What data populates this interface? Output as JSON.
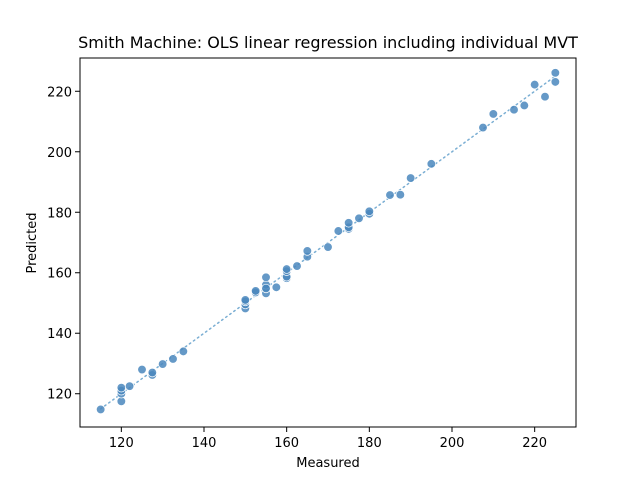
{
  "chart_data": {
    "type": "scatter",
    "title": "Smith Machine: OLS linear regression including individual MVT",
    "xlabel": "Measured",
    "ylabel": "Predicted",
    "xlim": [
      110,
      230
    ],
    "ylim": [
      109,
      231
    ],
    "xticks": [
      120,
      140,
      160,
      180,
      200,
      220
    ],
    "yticks": [
      120,
      140,
      160,
      180,
      200,
      220
    ],
    "grid": false,
    "point_color": "#4a87bd",
    "reference_line": {
      "style": "dotted",
      "color": "#7aaed3",
      "from": [
        115,
        115
      ],
      "to": [
        225,
        225
      ]
    },
    "series": [
      {
        "x": [
          115,
          120,
          120,
          120,
          120,
          122,
          125,
          127.5,
          127.5,
          130,
          132.5,
          135,
          150,
          150,
          150,
          150,
          152.5,
          152.5,
          155,
          155,
          155,
          155,
          155,
          157.5,
          160,
          160,
          160,
          160,
          162.5,
          165,
          165,
          170,
          172.5,
          175,
          175,
          175,
          177.5,
          180,
          180,
          185,
          187.5,
          190,
          195,
          207.5,
          210,
          215,
          217.5,
          220,
          222.5,
          225,
          225
        ],
        "y": [
          114.8,
          117.5,
          120,
          121,
          122,
          122.5,
          128,
          126.2,
          127,
          129.8,
          131.5,
          134,
          148.2,
          149.5,
          150.5,
          151,
          153.5,
          154,
          153.2,
          155,
          156,
          158.5,
          154.8,
          155.2,
          158.2,
          158.7,
          160.5,
          161.2,
          162.2,
          165.3,
          167.2,
          168.5,
          173.8,
          174.5,
          175.0,
          176.5,
          178,
          179.5,
          180.3,
          185.7,
          185.8,
          191.3,
          196,
          208,
          212.5,
          213.9,
          215.3,
          222.2,
          218.2,
          223.1,
          226.1
        ]
      }
    ]
  }
}
